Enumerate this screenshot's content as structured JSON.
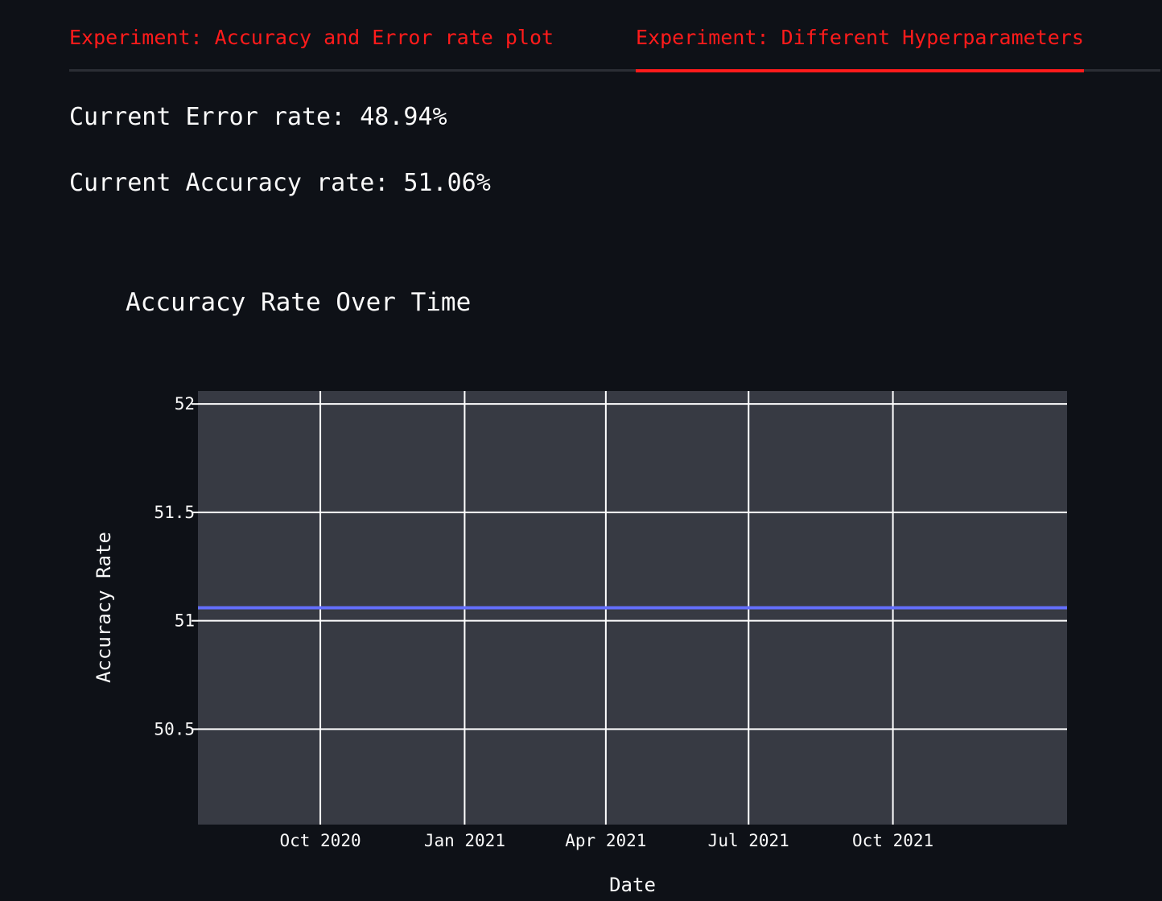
{
  "tabs": [
    {
      "label": "Experiment: Accuracy and Error rate plot",
      "active": false
    },
    {
      "label": "Experiment: Different Hyperparameters",
      "active": true
    }
  ],
  "metrics": {
    "error_rate": "Current Error rate: 48.94%",
    "accuracy_rate": "Current Accuracy rate: 51.06%"
  },
  "colors": {
    "background": "#0e1117",
    "accent": "#ff1b1b",
    "plot_background": "#373a43",
    "series_line": "#636efa",
    "grid": "#ffffff"
  },
  "chart_data": {
    "type": "line",
    "title": "Accuracy Rate Over Time",
    "xlabel": "Date",
    "ylabel": "Accuracy Rate",
    "x_range": [
      "2020-07-15",
      "2022-01-20"
    ],
    "ylim": [
      50.06,
      52.06
    ],
    "x_ticks": [
      {
        "date": "2020-10-01",
        "label": "Oct 2020"
      },
      {
        "date": "2021-01-01",
        "label": "Jan 2021"
      },
      {
        "date": "2021-04-01",
        "label": "Apr 2021"
      },
      {
        "date": "2021-07-01",
        "label": "Jul 2021"
      },
      {
        "date": "2021-10-01",
        "label": "Oct 2021"
      }
    ],
    "y_ticks": [
      {
        "value": 50.5,
        "label": "50.5"
      },
      {
        "value": 51,
        "label": "51"
      },
      {
        "value": 51.5,
        "label": "51.5"
      },
      {
        "value": 52,
        "label": "52"
      }
    ],
    "grid": true,
    "series": [
      {
        "x": [
          "2020-07-15",
          "2022-01-20"
        ],
        "y": [
          51.06,
          51.06
        ]
      }
    ]
  }
}
